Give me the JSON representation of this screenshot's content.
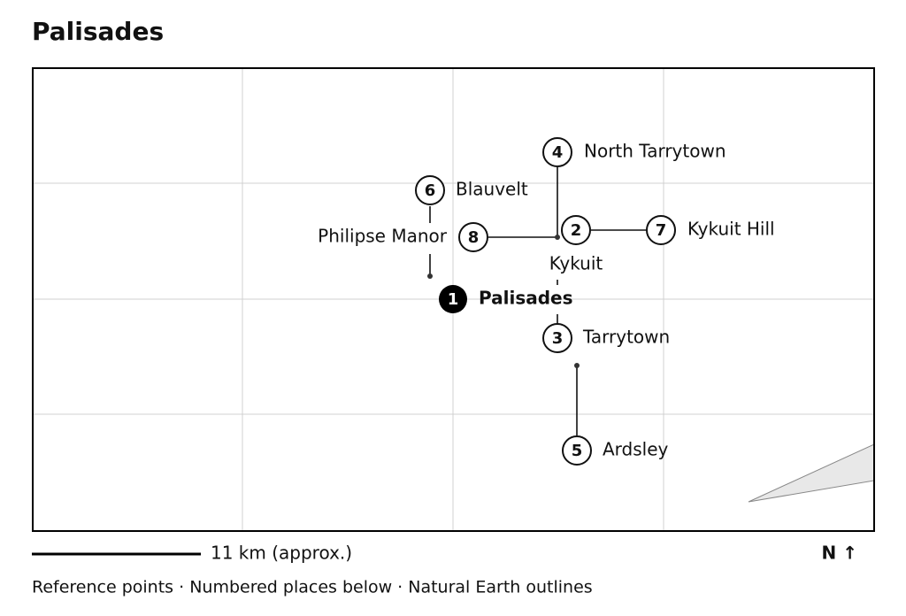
{
  "header": {
    "title": "Palisades"
  },
  "places": [
    {
      "number": 1,
      "name": "Palisades"
    },
    {
      "number": 2,
      "name": "Kykuit"
    },
    {
      "number": 3,
      "name": "Tarrytown"
    },
    {
      "number": 4,
      "name": "North Tarrytown"
    },
    {
      "number": 5,
      "name": "Ardsley"
    },
    {
      "number": 6,
      "name": "Blauvelt"
    },
    {
      "number": 7,
      "name": "Kykuit Hill"
    },
    {
      "number": 8,
      "name": "Philipse Manor"
    }
  ],
  "scale": {
    "label": "11 km (approx.)"
  },
  "north": {
    "label": "N ↑"
  },
  "footer": {
    "text": "Reference points · Numbered places below · Natural Earth outlines"
  }
}
